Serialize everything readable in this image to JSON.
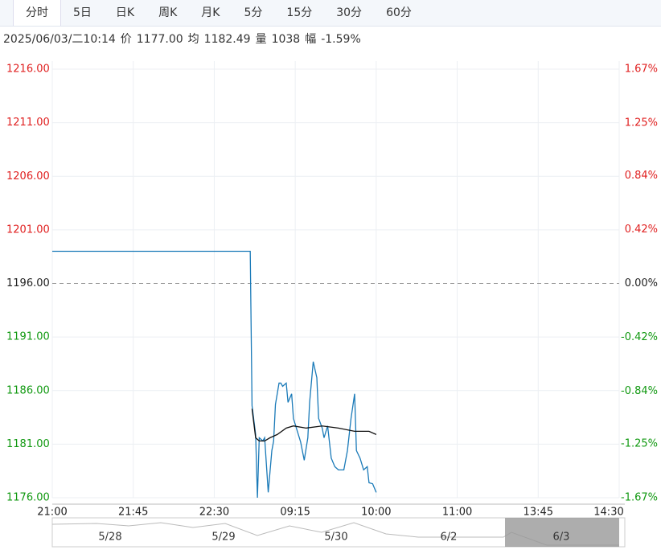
{
  "tabs": [
    "分时",
    "5日",
    "日K",
    "周K",
    "月K",
    "5分",
    "15分",
    "30分",
    "60分"
  ],
  "info": {
    "time": "2025/06/03/二10:14",
    "fields": [
      {
        "label": "价",
        "value": "1177.00"
      },
      {
        "label": "均",
        "value": "1182.49"
      },
      {
        "label": "量",
        "value": "1038"
      },
      {
        "label": "幅",
        "value": "-1.59%"
      }
    ]
  },
  "chart_data": {
    "type": "line",
    "xlim": [
      0,
      315
    ],
    "xticks": [
      {
        "value": 0,
        "label": "21:00"
      },
      {
        "value": 45,
        "label": "21:45"
      },
      {
        "value": 90,
        "label": "22:30"
      },
      {
        "value": 135,
        "label": "09:15"
      },
      {
        "value": 180,
        "label": "10:00"
      },
      {
        "value": 225,
        "label": "11:00"
      },
      {
        "value": 270,
        "label": "13:45"
      },
      {
        "value": 315,
        "label": "14:30"
      }
    ],
    "ylim": [
      1176,
      1216
    ],
    "yticks": [
      {
        "value": 1216,
        "label": "1216.00"
      },
      {
        "value": 1211,
        "label": "1211.00"
      },
      {
        "value": 1206,
        "label": "1206.00"
      },
      {
        "value": 1201,
        "label": "1201.00"
      },
      {
        "value": 1196,
        "label": "1196.00"
      },
      {
        "value": 1191,
        "label": "1191.00"
      },
      {
        "value": 1186,
        "label": "1186.00"
      },
      {
        "value": 1181,
        "label": "1181.00"
      },
      {
        "value": 1176,
        "label": "1176.00"
      }
    ],
    "y2lim": [
      -1.67,
      1.67
    ],
    "y2ticks": [
      {
        "value": 1.67,
        "label": "1.67%"
      },
      {
        "value": 1.25,
        "label": "1.25%"
      },
      {
        "value": 0.84,
        "label": "0.84%"
      },
      {
        "value": 0.42,
        "label": "0.42%"
      },
      {
        "value": 0,
        "label": "0.00%"
      },
      {
        "value": -0.42,
        "label": "-0.42%"
      },
      {
        "value": -0.84,
        "label": "-0.84%"
      },
      {
        "value": -1.25,
        "label": "-1.25%"
      },
      {
        "value": -1.67,
        "label": "-1.67%"
      }
    ],
    "prev_close": 1196,
    "up_color": "#e02020",
    "down_color": "#119911",
    "grid": true,
    "series": [
      {
        "color": "#1a7ab8",
        "x": [
          0,
          110,
          111,
          113,
          114,
          115,
          117,
          118,
          120,
          122,
          123,
          124,
          126,
          127,
          128,
          130,
          131,
          133,
          134,
          136,
          138,
          140,
          142,
          143,
          145,
          147,
          148,
          150,
          151,
          153,
          155,
          157,
          159,
          160,
          162,
          164,
          166,
          168,
          169,
          171,
          173,
          175,
          176,
          178,
          180
        ],
        "values": [
          1199.0,
          1199.0,
          1184.6,
          1181.9,
          1176,
          1181.6,
          1181.3,
          1181.6,
          1176.5,
          1180.4,
          1181.3,
          1184.7,
          1186.7,
          1186.7,
          1186.4,
          1186.7,
          1184.9,
          1185.7,
          1183.4,
          1182.3,
          1181.2,
          1179.5,
          1181.6,
          1184.9,
          1188.7,
          1187.2,
          1183.4,
          1182.5,
          1181.6,
          1182.7,
          1179.7,
          1178.9,
          1178.6,
          1178.6,
          1178.6,
          1180.4,
          1183.4,
          1185.7,
          1180.4,
          1179.7,
          1178.6,
          1178.9,
          1177.4,
          1177.3,
          1176.5
        ]
      },
      {
        "color": "#111111",
        "x": [
          111,
          113,
          115,
          118,
          121,
          125,
          130,
          134,
          141,
          150,
          159,
          168,
          176,
          180
        ],
        "values": [
          1184.3,
          1181.6,
          1181.3,
          1181.3,
          1181.6,
          1181.9,
          1182.5,
          1182.7,
          1182.5,
          1182.7,
          1182.5,
          1182.2,
          1182.2,
          1181.9
        ]
      }
    ],
    "navigator": {
      "labels": [
        "5/28",
        "5/29",
        "5/30",
        "6/2",
        "6/3"
      ]
    }
  }
}
